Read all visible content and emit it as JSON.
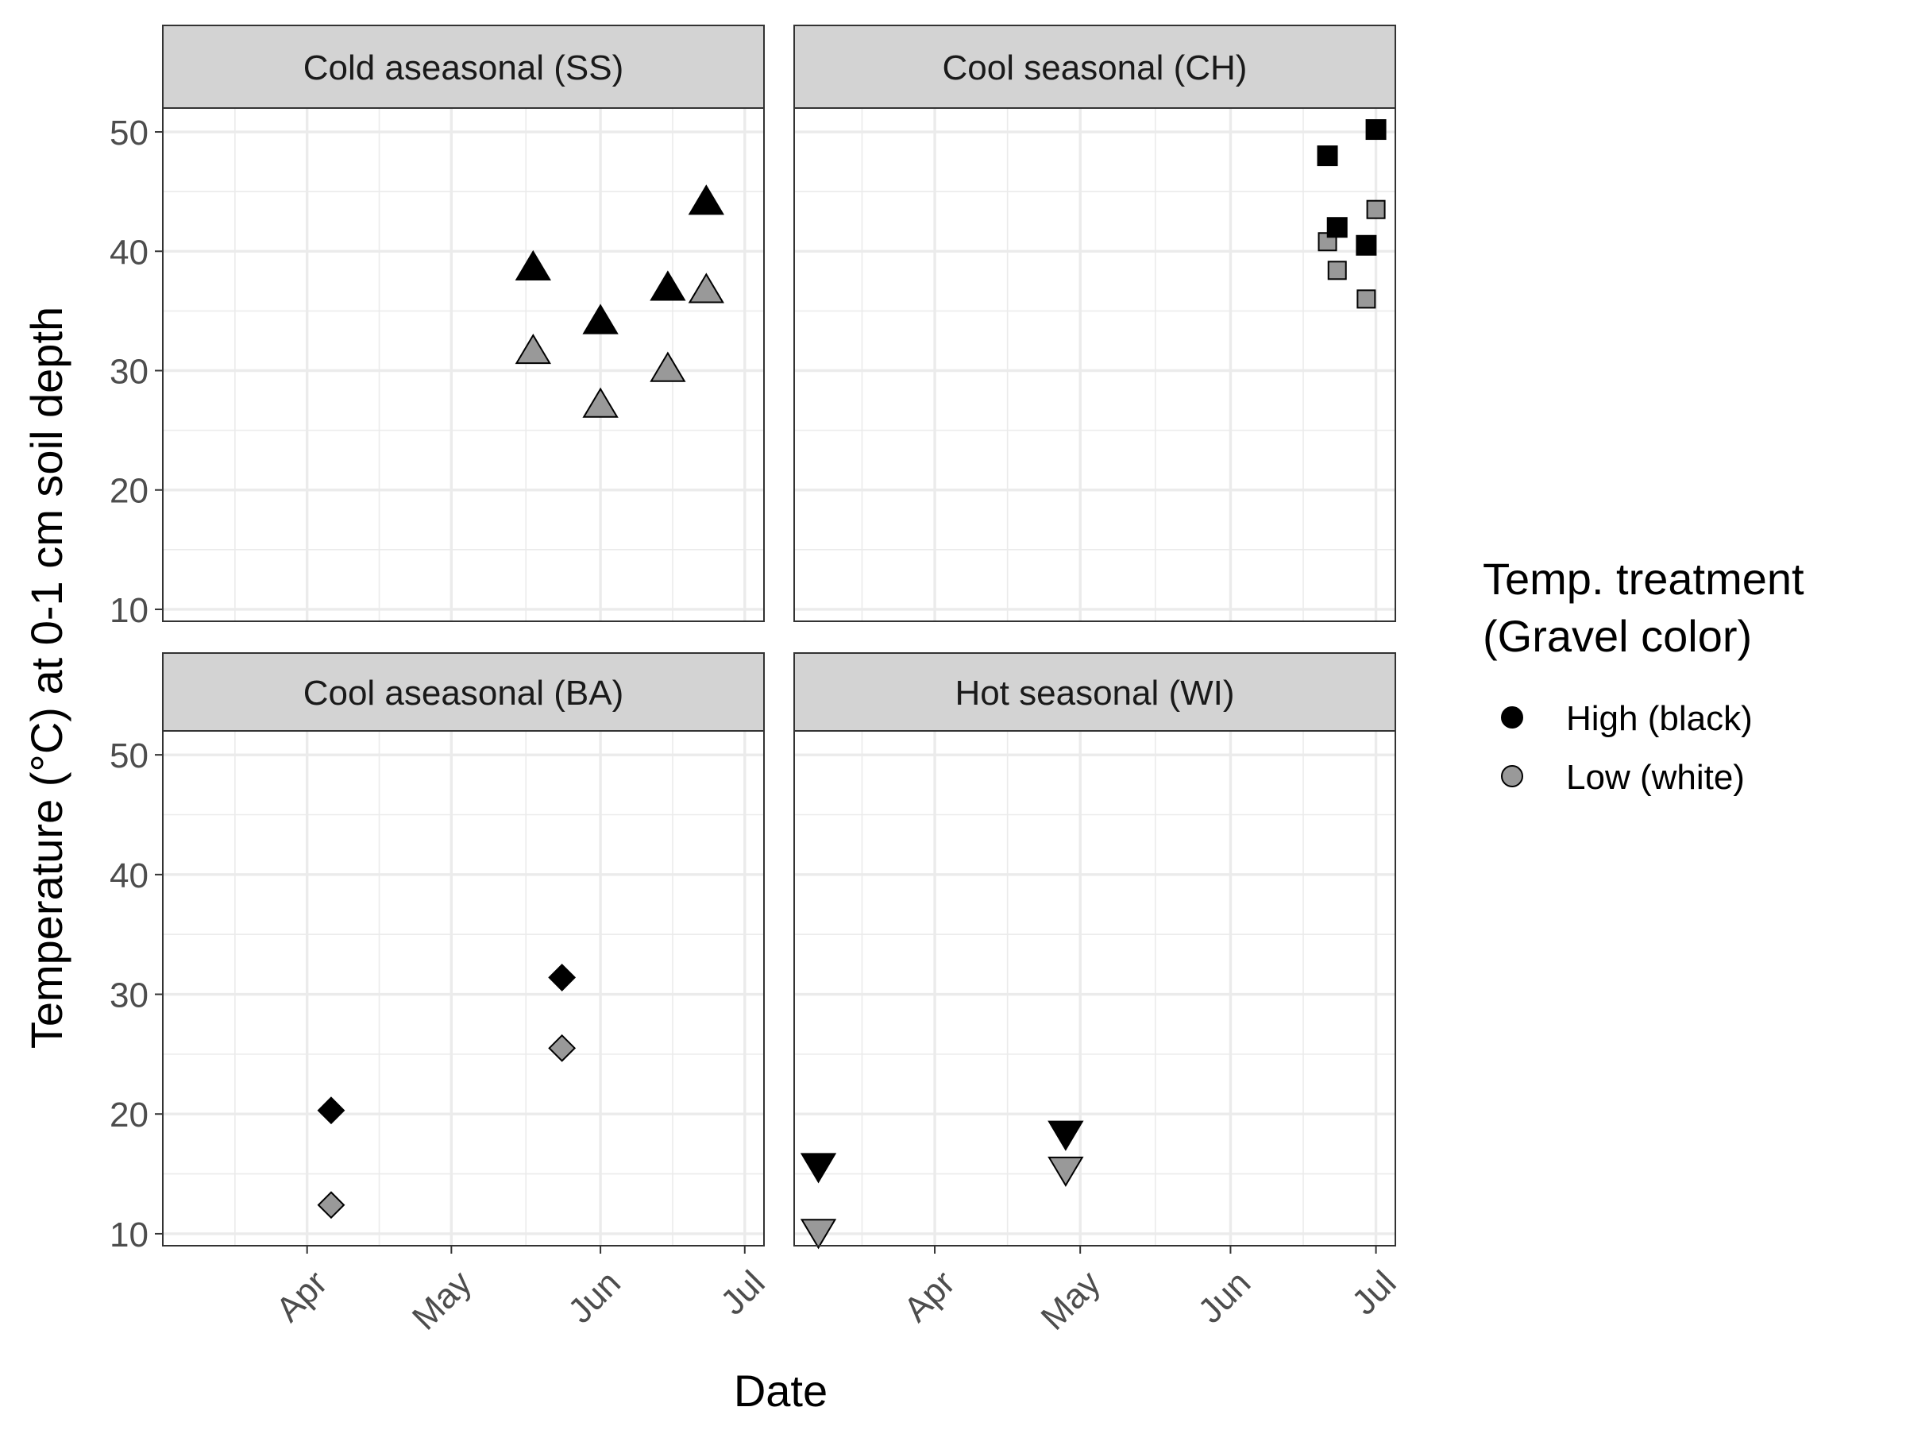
{
  "chart_data": {
    "type": "scatter",
    "layout": "faceted 2x2 grid",
    "xlabel": "Date",
    "ylabel": "Temperature (°C) at 0-1 cm soil depth",
    "ylim": [
      9,
      52
    ],
    "yticks": [
      10,
      20,
      30,
      40,
      50
    ],
    "xticks": [
      {
        "label": "Apr",
        "date": "04-01"
      },
      {
        "label": "May",
        "date": "05-01"
      },
      {
        "label": "Jun",
        "date": "06-01"
      },
      {
        "label": "Jul",
        "date": "07-01"
      }
    ],
    "grid": true,
    "legend": {
      "title": "Temp. treatment\n(Gravel color)",
      "position": "right",
      "entries": [
        {
          "label": "High (black)",
          "color": "#000000"
        },
        {
          "label": "Low (white)",
          "color": "#999999"
        }
      ]
    },
    "colors": {
      "High": "#000000",
      "Low": "#999999",
      "strip": "#d3d3d3",
      "grid": "#ebebeb"
    },
    "facets": [
      {
        "title": "Cold aseasonal (SS)",
        "shape": "triangle-up",
        "xlim": [
          "03-02",
          "07-05"
        ],
        "points": [
          {
            "date": "05-18",
            "treatment": "High",
            "y": 38.5
          },
          {
            "date": "05-18",
            "treatment": "Low",
            "y": 31.5
          },
          {
            "date": "06-01",
            "treatment": "High",
            "y": 34
          },
          {
            "date": "06-01",
            "treatment": "Low",
            "y": 27
          },
          {
            "date": "06-15",
            "treatment": "High",
            "y": 36.8
          },
          {
            "date": "06-15",
            "treatment": "Low",
            "y": 30
          },
          {
            "date": "06-23",
            "treatment": "High",
            "y": 44
          },
          {
            "date": "06-23",
            "treatment": "Low",
            "y": 36.6
          }
        ]
      },
      {
        "title": "Cool seasonal (CH)",
        "shape": "square",
        "xlim": [
          "03-03",
          "07-05"
        ],
        "points": [
          {
            "date": "06-21",
            "treatment": "High",
            "y": 48
          },
          {
            "date": "06-21",
            "treatment": "Low",
            "y": 40.8
          },
          {
            "date": "06-23",
            "treatment": "High",
            "y": 42
          },
          {
            "date": "06-23",
            "treatment": "Low",
            "y": 38.4
          },
          {
            "date": "06-29",
            "treatment": "High",
            "y": 40.5
          },
          {
            "date": "06-29",
            "treatment": "Low",
            "y": 36
          },
          {
            "date": "07-01",
            "treatment": "High",
            "y": 50.2
          },
          {
            "date": "07-01",
            "treatment": "Low",
            "y": 43.5
          }
        ]
      },
      {
        "title": "Cool aseasonal (BA)",
        "shape": "diamond",
        "xlim": [
          "03-02",
          "07-05"
        ],
        "points": [
          {
            "date": "04-06",
            "treatment": "High",
            "y": 20.3
          },
          {
            "date": "04-06",
            "treatment": "Low",
            "y": 12.4
          },
          {
            "date": "05-24",
            "treatment": "High",
            "y": 31.4
          },
          {
            "date": "05-24",
            "treatment": "Low",
            "y": 25.5
          }
        ]
      },
      {
        "title": "Hot seasonal (WI)",
        "shape": "triangle-down",
        "xlim": [
          "03-03",
          "07-05"
        ],
        "points": [
          {
            "date": "03-08",
            "treatment": "High",
            "y": 15.8
          },
          {
            "date": "03-08",
            "treatment": "Low",
            "y": 10.3
          },
          {
            "date": "04-28",
            "treatment": "High",
            "y": 18.5
          },
          {
            "date": "04-28",
            "treatment": "Low",
            "y": 15.5
          }
        ]
      }
    ]
  }
}
